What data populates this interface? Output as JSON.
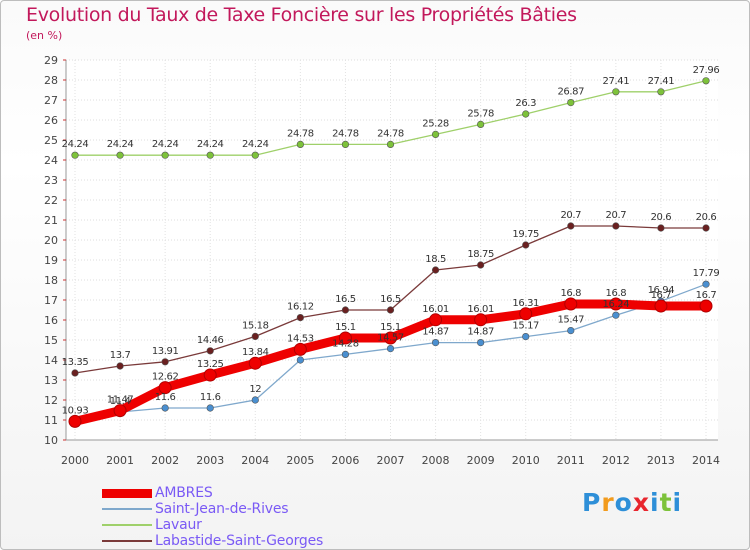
{
  "title": "Evolution du Taux de Taxe Foncière sur les Propriétés Bâties",
  "subtitle": "(en %)",
  "logo_text": "Proxiti",
  "chart_data": {
    "type": "line",
    "x": [
      "2000",
      "2001",
      "2002",
      "2003",
      "2004",
      "2005",
      "2006",
      "2007",
      "2008",
      "2009",
      "2010",
      "2011",
      "2012",
      "2013",
      "2014"
    ],
    "ylim": [
      10,
      29
    ],
    "yticks": [
      10,
      11,
      12,
      13,
      14,
      15,
      16,
      17,
      18,
      19,
      20,
      21,
      22,
      23,
      24,
      25,
      26,
      27,
      28,
      29
    ],
    "grid": true,
    "legend_position": "bottom-left",
    "series": [
      {
        "name": "AMBRES",
        "color": "#ee0000",
        "marker_color": "#ee0000",
        "line_width": 9,
        "values": [
          10.93,
          11.47,
          12.62,
          13.25,
          13.84,
          14.53,
          15.1,
          15.1,
          16.01,
          16.01,
          16.31,
          16.8,
          16.8,
          16.7,
          16.7
        ],
        "labels": [
          "10.93",
          "11.47",
          "12.62",
          "13.25",
          "13.84",
          "14.53",
          "15.1",
          "15.1",
          "16.01",
          "16.01",
          "16.31",
          "16.8",
          "16.8",
          "16.7",
          "16.7"
        ]
      },
      {
        "name": "Saint-Jean-de-Rives",
        "color": "#7fa8cc",
        "marker_color": "#4a8fd0",
        "line_width": 1.3,
        "values": [
          10.93,
          11.4,
          11.6,
          11.6,
          12,
          14,
          14.28,
          14.57,
          14.87,
          14.87,
          15.17,
          15.47,
          16.24,
          16.94,
          17.79
        ],
        "labels": [
          "",
          "11.4",
          "11.6",
          "11.6",
          "12",
          "",
          "14.28",
          "14.57",
          "14.87",
          "14.87",
          "15.17",
          "15.47",
          "16.24",
          "16.94",
          "17.79"
        ]
      },
      {
        "name": "Lavaur",
        "color": "#9fd06a",
        "marker_color": "#7dc23a",
        "line_width": 1.3,
        "values": [
          24.24,
          24.24,
          24.24,
          24.24,
          24.24,
          24.78,
          24.78,
          24.78,
          25.28,
          25.78,
          26.3,
          26.87,
          27.41,
          27.41,
          27.96
        ],
        "labels": [
          "24.24",
          "24.24",
          "24.24",
          "24.24",
          "24.24",
          "24.78",
          "24.78",
          "24.78",
          "25.28",
          "25.78",
          "26.3",
          "26.87",
          "27.41",
          "27.41",
          "27.96"
        ]
      },
      {
        "name": "Labastide-Saint-Georges",
        "color": "#7a3a3a",
        "marker_color": "#6a2020",
        "line_width": 1.3,
        "values": [
          13.35,
          13.7,
          13.91,
          14.46,
          15.18,
          16.12,
          16.5,
          16.5,
          18.5,
          18.75,
          19.75,
          20.7,
          20.7,
          20.6,
          20.6
        ],
        "labels": [
          "13.35",
          "13.7",
          "13.91",
          "14.46",
          "15.18",
          "16.12",
          "16.5",
          "16.5",
          "18.5",
          "18.75",
          "19.75",
          "20.7",
          "20.7",
          "20.6",
          "20.6"
        ]
      }
    ]
  }
}
